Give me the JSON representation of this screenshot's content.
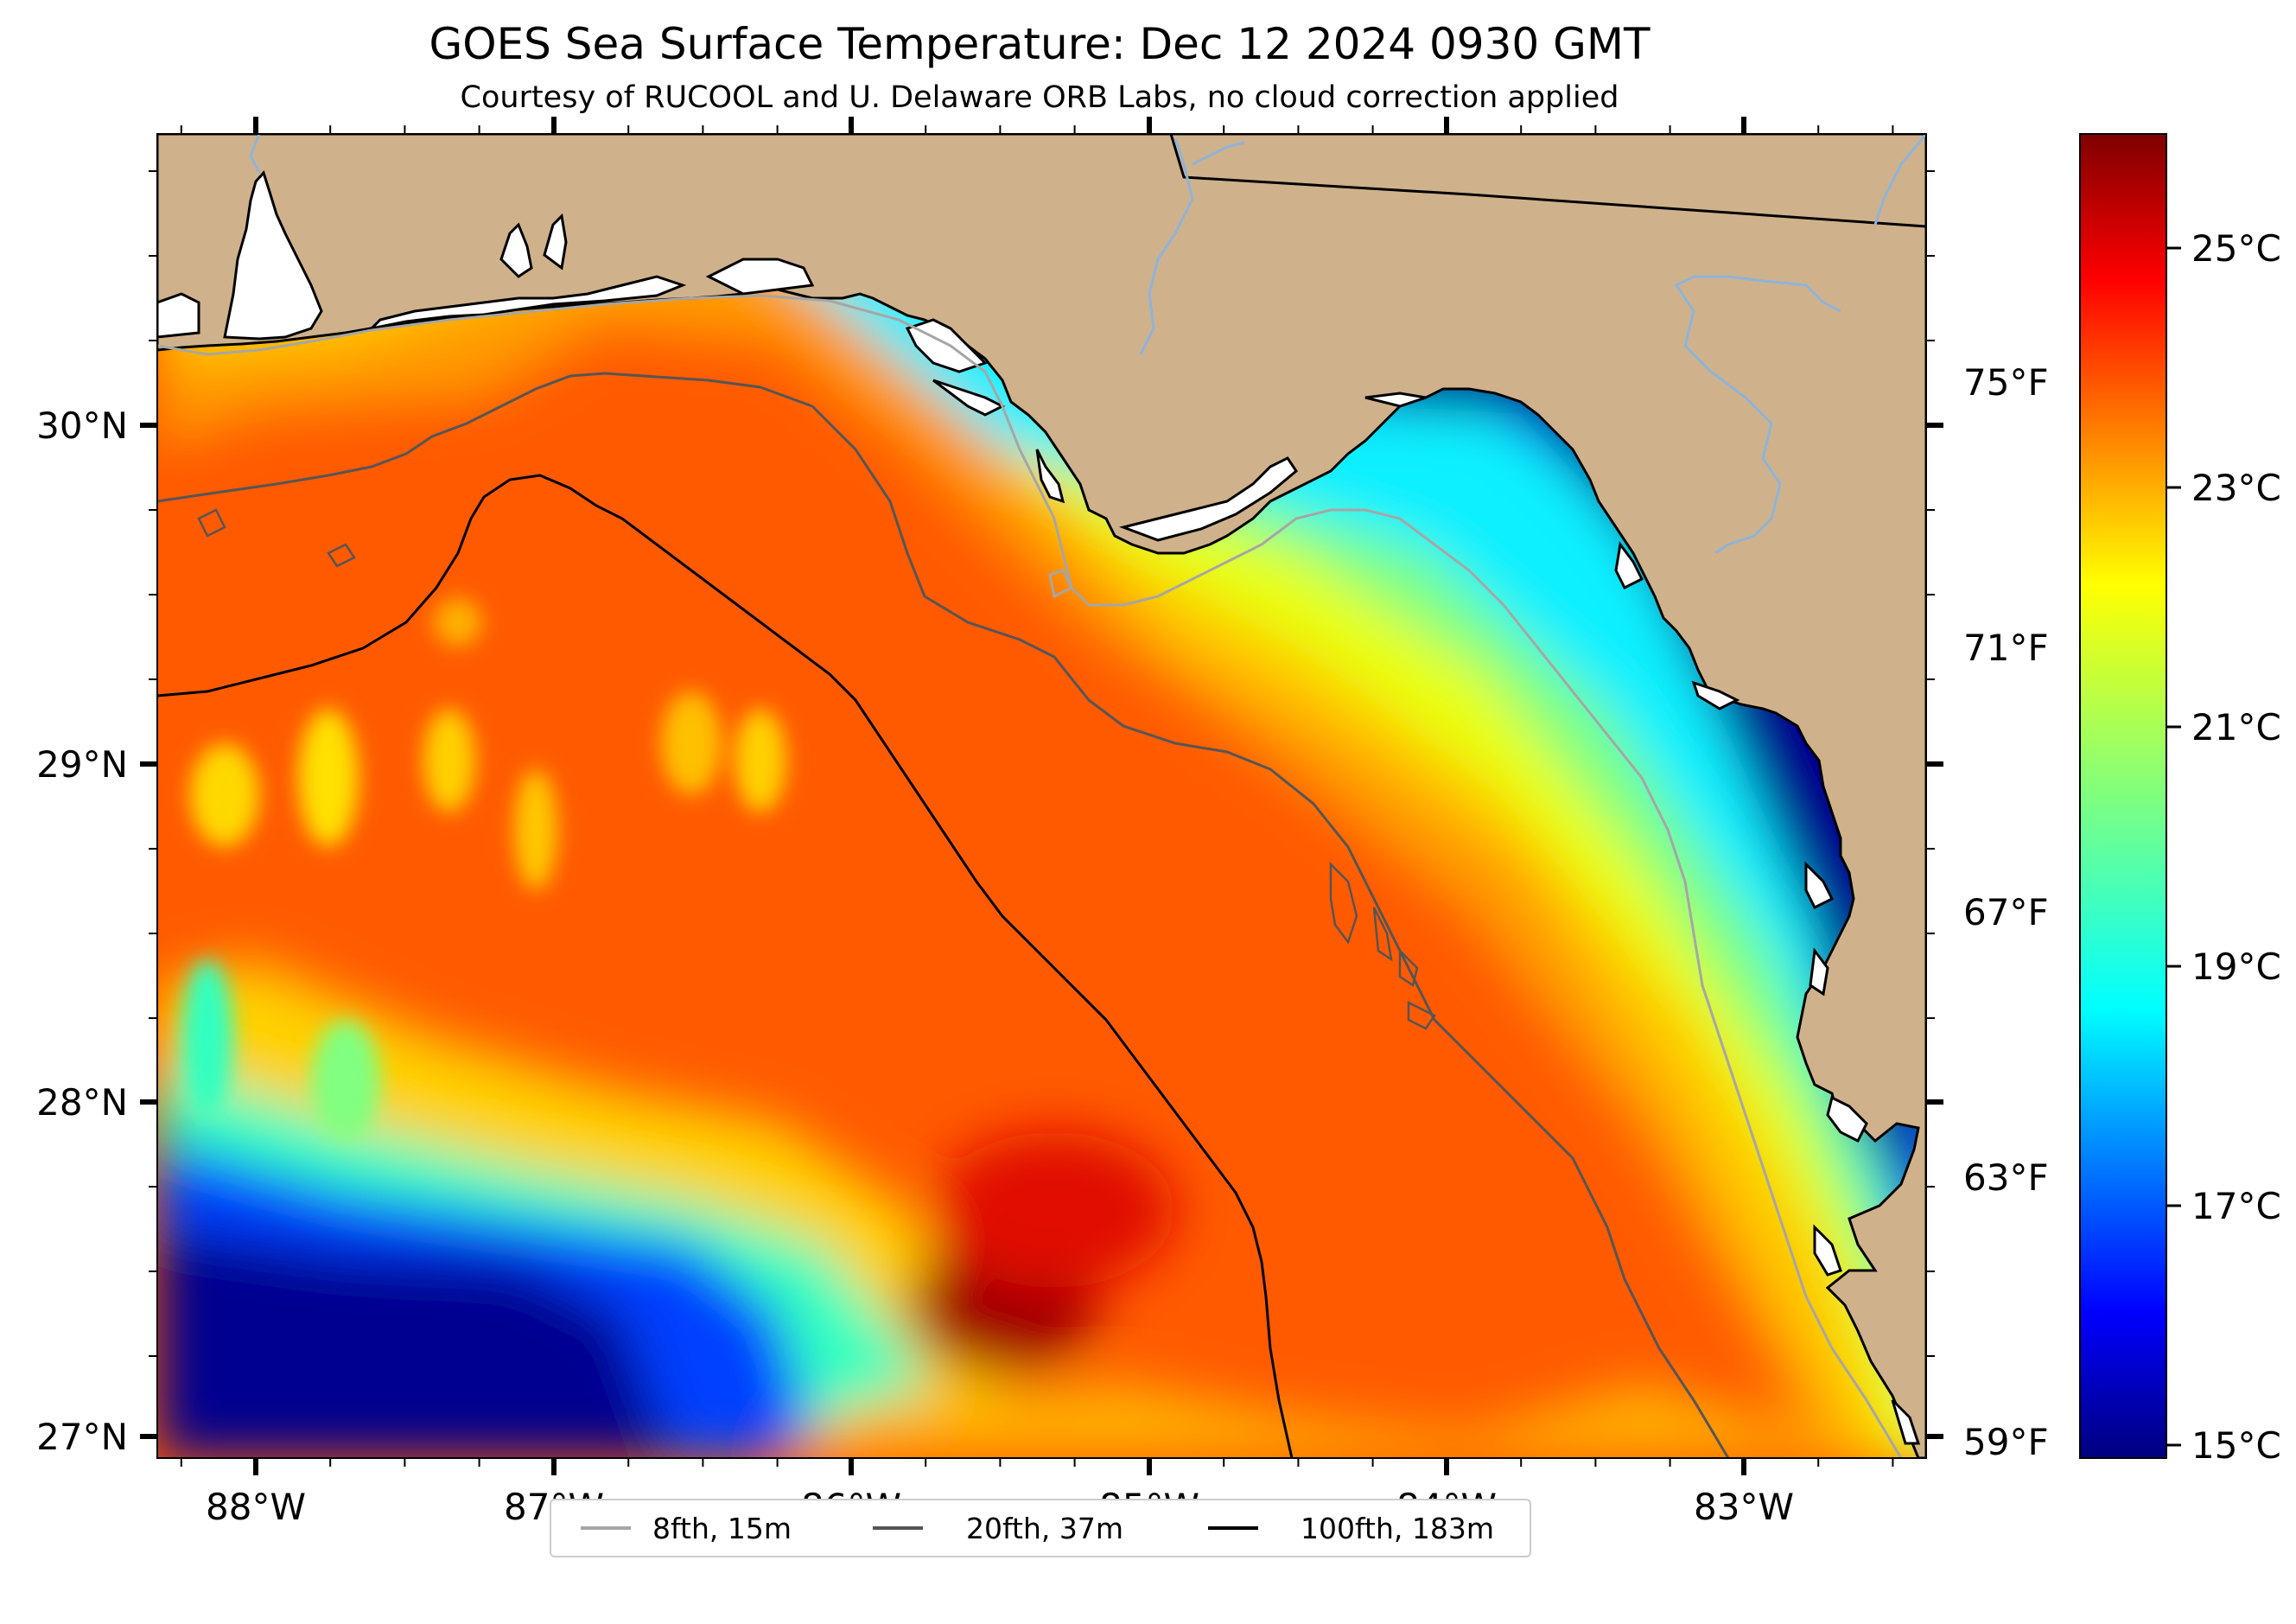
{
  "title": "GOES Sea Surface Temperature: Dec 12 2024 0930 GMT",
  "subtitle": "Courtesy of RUCOOL and U. Delaware ORB Labs, no cloud correction applied",
  "map": {
    "longitude_labels": [
      "88°W",
      "87°W",
      "86°W",
      "85°W",
      "84°W",
      "83°W"
    ],
    "latitude_labels": [
      "30°N",
      "29°N",
      "28°N",
      "27°N"
    ],
    "fahrenheit_labels": [
      "75°F",
      "71°F",
      "67°F",
      "63°F",
      "59°F"
    ],
    "colors": {
      "land": "#cfb28b",
      "coast": "#000000",
      "river": "#8fb3d9"
    }
  },
  "colorbar": {
    "labels": [
      "25°C",
      "23°C",
      "21°C",
      "19°C",
      "17°C",
      "15°C"
    ],
    "colormap": "jet"
  },
  "legend": {
    "placement": "bottom-center",
    "items": [
      {
        "label": "8fth, 15m",
        "color": "#a6a6a6"
      },
      {
        "label": "20fth, 37m",
        "color": "#555555"
      },
      {
        "label": "100fth, 183m",
        "color": "#000000"
      }
    ]
  }
}
